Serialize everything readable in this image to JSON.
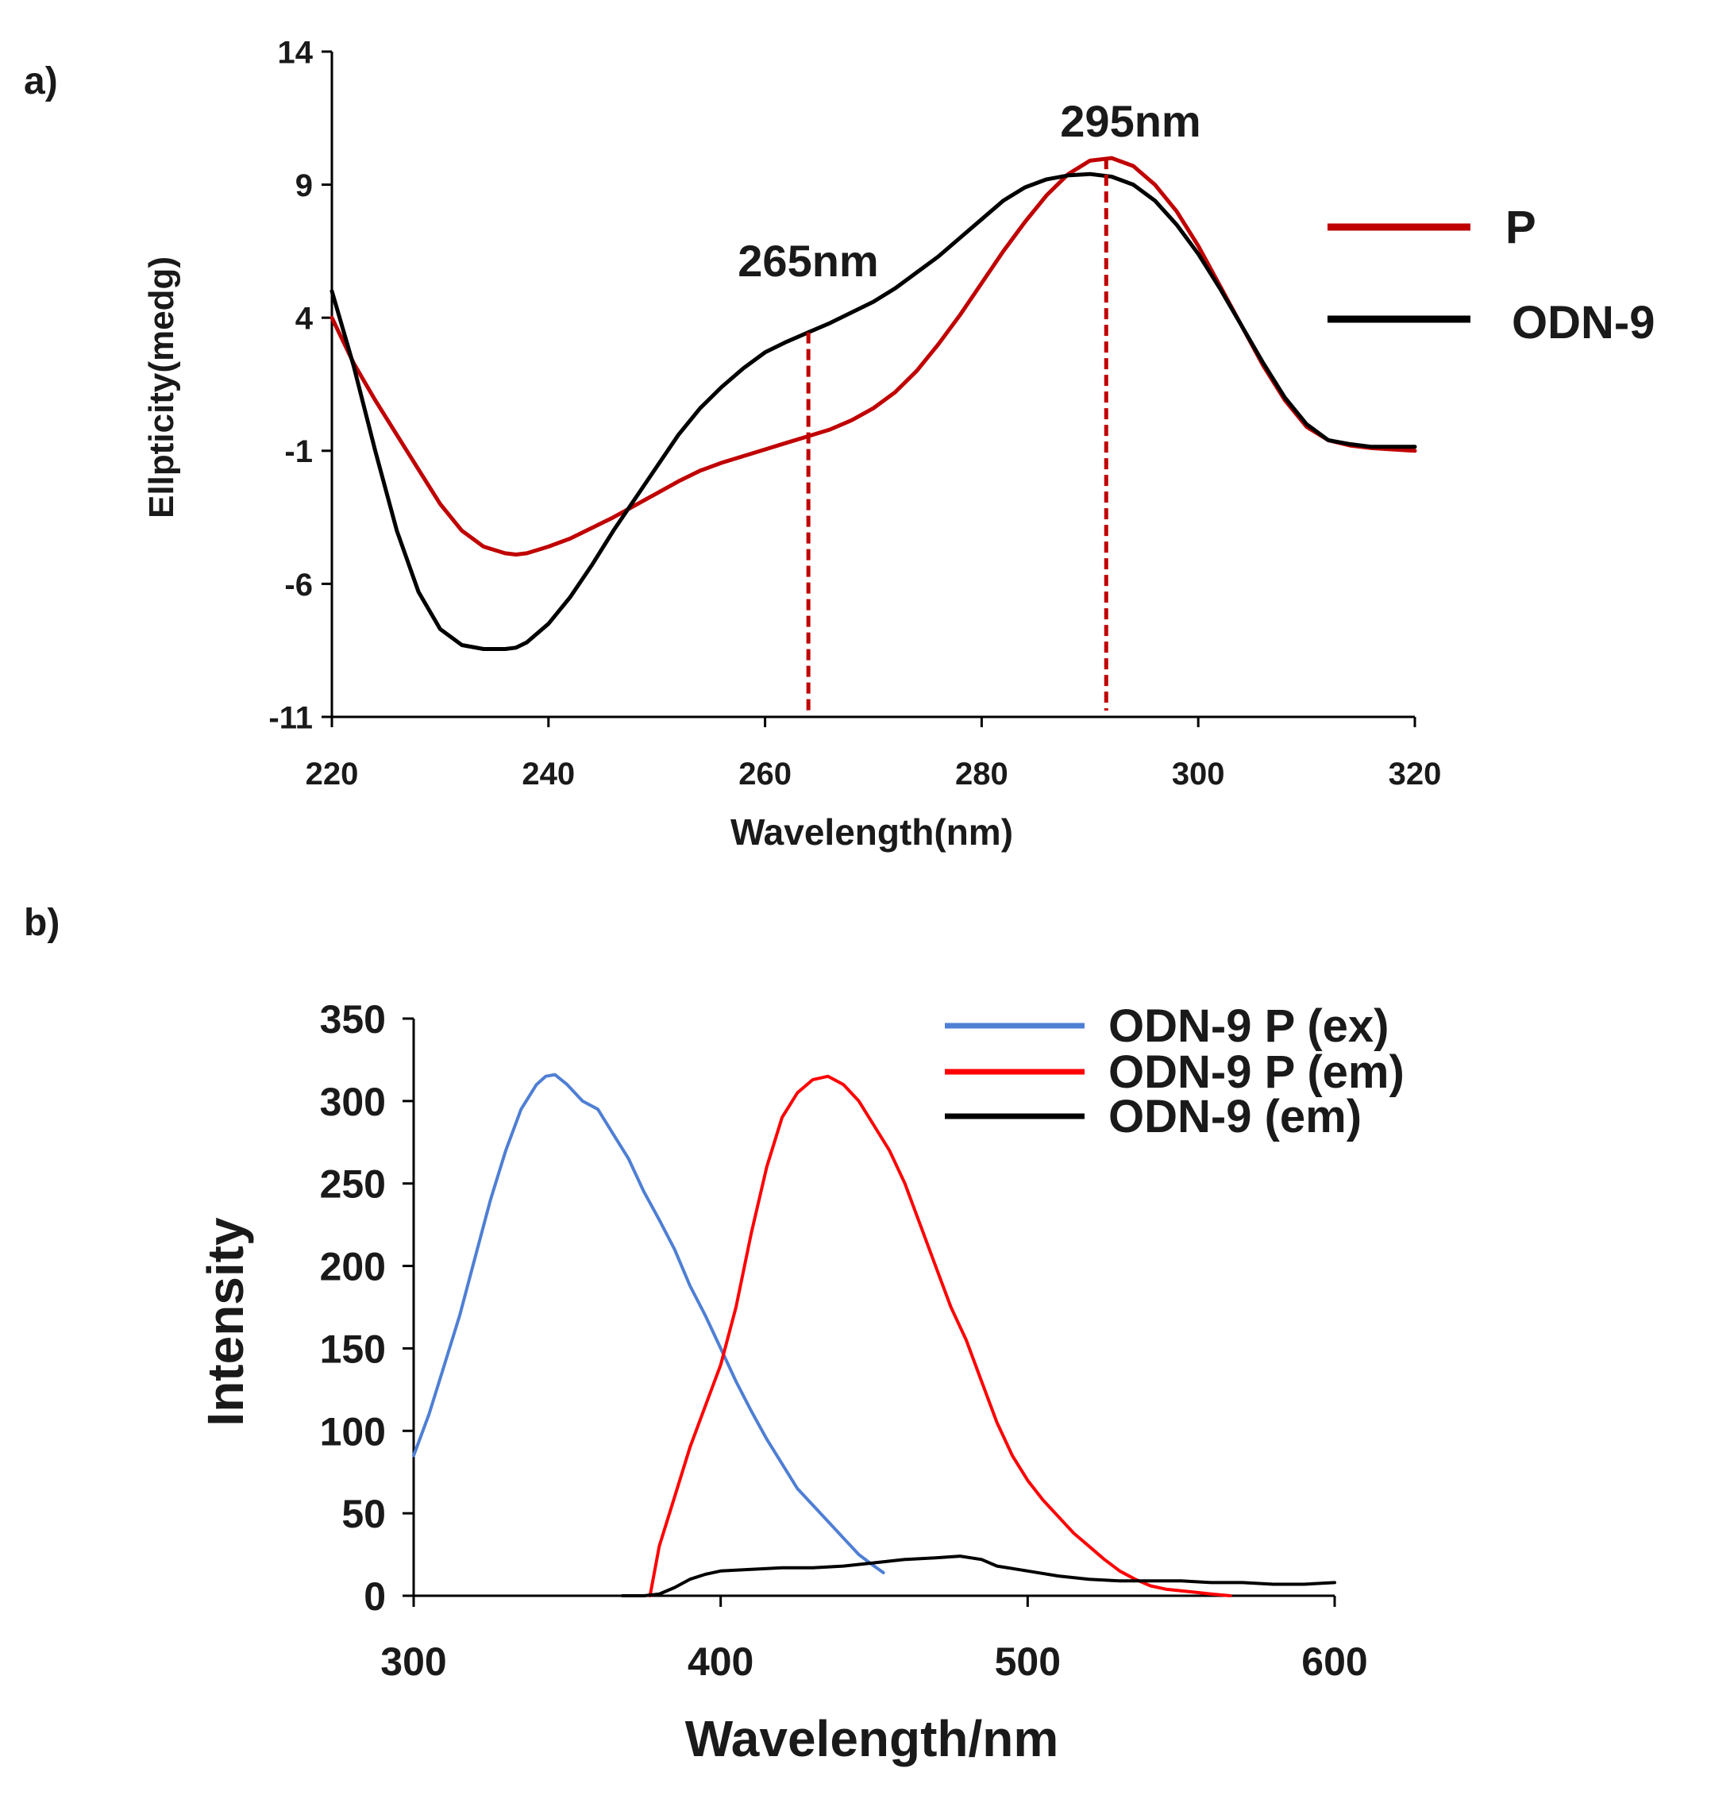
{
  "chart_data": [
    {
      "type": "line",
      "panel_label": "a)",
      "title": "",
      "xlabel": "Wavelength(nm)",
      "ylabel": "Ellpticity(medg)",
      "xlim": [
        220,
        320
      ],
      "ylim": [
        -11,
        14
      ],
      "xticks": [
        "220",
        "240",
        "260",
        "280",
        "300",
        "320"
      ],
      "yticks": [
        "-11",
        "-6",
        "-1",
        "4",
        "9",
        "14"
      ],
      "colors": {
        "P": "#c00000",
        "ODN-9": "#000000",
        "markers": "#c00000"
      },
      "legend_position": "right",
      "series": [
        {
          "name": "P",
          "x": [
            220,
            222,
            224,
            226,
            228,
            230,
            232,
            234,
            236,
            237,
            238,
            240,
            242,
            244,
            246,
            248,
            250,
            252,
            254,
            256,
            258,
            260,
            262,
            264,
            266,
            268,
            270,
            272,
            274,
            276,
            278,
            280,
            282,
            284,
            286,
            288,
            290,
            292,
            294,
            296,
            298,
            300,
            302,
            304,
            306,
            308,
            310,
            312,
            314,
            316,
            318,
            320
          ],
          "values": [
            4.0,
            2.3,
            0.9,
            -0.4,
            -1.7,
            -3.0,
            -4.0,
            -4.6,
            -4.85,
            -4.9,
            -4.85,
            -4.6,
            -4.3,
            -3.9,
            -3.5,
            -3.05,
            -2.6,
            -2.15,
            -1.75,
            -1.45,
            -1.2,
            -0.95,
            -0.7,
            -0.45,
            -0.2,
            0.15,
            0.6,
            1.2,
            2.0,
            3.0,
            4.1,
            5.3,
            6.5,
            7.6,
            8.6,
            9.4,
            9.9,
            10.0,
            9.7,
            9.0,
            8.0,
            6.7,
            5.2,
            3.7,
            2.2,
            0.9,
            -0.1,
            -0.6,
            -0.8,
            -0.9,
            -0.95,
            -1.0
          ]
        },
        {
          "name": "ODN-9",
          "x": [
            220,
            222,
            224,
            226,
            228,
            230,
            232,
            234,
            236,
            237,
            238,
            240,
            242,
            244,
            246,
            248,
            250,
            252,
            254,
            256,
            258,
            260,
            262,
            264,
            266,
            268,
            270,
            272,
            274,
            276,
            278,
            280,
            282,
            284,
            286,
            288,
            290,
            292,
            294,
            296,
            298,
            300,
            302,
            304,
            306,
            308,
            310,
            312,
            314,
            316,
            318,
            320
          ],
          "values": [
            5.0,
            2.2,
            -1.0,
            -4.0,
            -6.3,
            -7.7,
            -8.3,
            -8.45,
            -8.45,
            -8.4,
            -8.2,
            -7.5,
            -6.5,
            -5.3,
            -4.0,
            -2.8,
            -1.6,
            -0.4,
            0.6,
            1.4,
            2.1,
            2.7,
            3.1,
            3.45,
            3.8,
            4.2,
            4.6,
            5.1,
            5.7,
            6.3,
            7.0,
            7.7,
            8.4,
            8.9,
            9.2,
            9.35,
            9.4,
            9.3,
            9.0,
            8.4,
            7.5,
            6.4,
            5.1,
            3.7,
            2.3,
            1.0,
            0.0,
            -0.6,
            -0.75,
            -0.85,
            -0.85,
            -0.85
          ]
        }
      ],
      "annotations": [
        {
          "label": "265nm",
          "x": 264,
          "y_top": 3.45
        },
        {
          "label": "295nm",
          "x": 291.5,
          "y_top": 10.0
        }
      ]
    },
    {
      "type": "line",
      "panel_label": "b)",
      "title": "",
      "xlabel": "Wavelength/nm",
      "ylabel": "Intensity",
      "xlim": [
        300,
        600
      ],
      "ylim": [
        0,
        350
      ],
      "xticks": [
        "300",
        "400",
        "500",
        "600"
      ],
      "yticks": [
        "0",
        "50",
        "100",
        "150",
        "200",
        "250",
        "300",
        "350"
      ],
      "colors": {
        "ODN-9 P (ex)": "#4f7fd4",
        "ODN-9 P (em)": "#ff0000",
        "ODN-9 (em)": "#000000"
      },
      "legend_position": "top-right",
      "series": [
        {
          "name": "ODN-9 P (ex)",
          "x": [
            300,
            305,
            310,
            315,
            320,
            325,
            330,
            335,
            340,
            343,
            346,
            350,
            355,
            360,
            365,
            370,
            375,
            380,
            385,
            390,
            395,
            400,
            405,
            410,
            415,
            420,
            425,
            430,
            435,
            440,
            445,
            450,
            453
          ],
          "values": [
            85,
            110,
            140,
            170,
            205,
            240,
            270,
            295,
            310,
            315,
            316,
            310,
            300,
            295,
            280,
            265,
            245,
            228,
            210,
            188,
            170,
            150,
            130,
            112,
            95,
            80,
            65,
            55,
            45,
            35,
            25,
            18,
            14
          ]
        },
        {
          "name": "ODN-9 P (em)",
          "x": [
            377,
            380,
            385,
            390,
            395,
            400,
            405,
            410,
            415,
            420,
            425,
            430,
            435,
            440,
            445,
            450,
            455,
            460,
            465,
            470,
            475,
            480,
            485,
            490,
            495,
            500,
            505,
            510,
            515,
            520,
            525,
            530,
            535,
            540,
            545,
            550,
            555,
            560,
            566
          ],
          "values": [
            0,
            30,
            60,
            90,
            115,
            140,
            175,
            220,
            260,
            290,
            305,
            313,
            315,
            310,
            300,
            285,
            270,
            250,
            225,
            200,
            175,
            155,
            130,
            105,
            85,
            70,
            58,
            48,
            38,
            30,
            22,
            15,
            10,
            6,
            4,
            3,
            2,
            1,
            0
          ]
        },
        {
          "name": "ODN-9 (em)",
          "x": [
            368,
            375,
            380,
            385,
            390,
            395,
            400,
            410,
            420,
            430,
            440,
            450,
            460,
            470,
            478,
            485,
            490,
            500,
            510,
            520,
            530,
            540,
            550,
            560,
            570,
            580,
            590,
            600
          ],
          "values": [
            0,
            0,
            1,
            5,
            10,
            13,
            15,
            16,
            17,
            17,
            18,
            20,
            22,
            23,
            24,
            22,
            18,
            15,
            12,
            10,
            9,
            9,
            9,
            8,
            8,
            7,
            7,
            8
          ]
        }
      ]
    }
  ]
}
